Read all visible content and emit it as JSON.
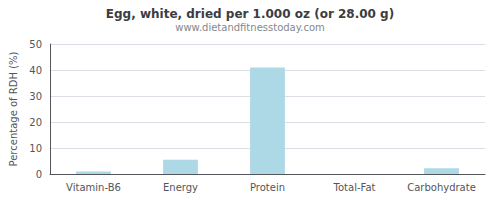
{
  "chart_data": {
    "type": "bar",
    "title": "Egg, white, dried per 1.000 oz (or 28.00 g)",
    "subtitle": "www.dietandfitnesstoday.com",
    "categories": [
      "Vitamin-B6",
      "Energy",
      "Protein",
      "Total-Fat",
      "Carbohydrate"
    ],
    "values": [
      1.0,
      5.5,
      41.0,
      0.0,
      2.2
    ],
    "color": "#add8e6",
    "ylabel": "Percentage of RDH (%)",
    "ylim": [
      0,
      50
    ],
    "yticks": [
      0,
      10,
      20,
      30,
      40,
      50
    ],
    "grid": true
  }
}
